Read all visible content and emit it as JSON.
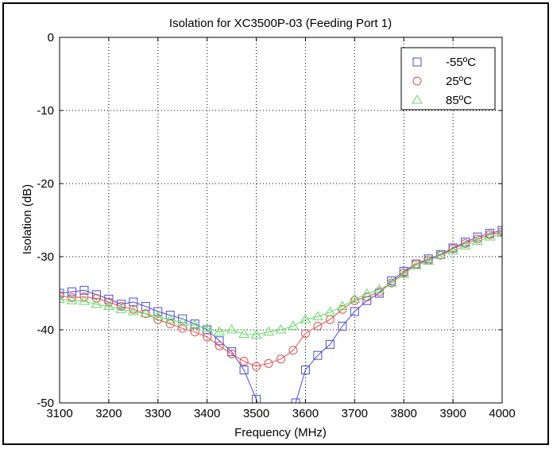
{
  "chart_data": {
    "type": "line",
    "title": "Isolation for XC3500P-03 (Feeding Port 1)",
    "xlabel": "Frequency (MHz)",
    "ylabel": "Isolation (dB)",
    "xlim": [
      3100,
      4000
    ],
    "ylim": [
      -50,
      0
    ],
    "xticks": [
      3100,
      3200,
      3300,
      3400,
      3500,
      3600,
      3700,
      3800,
      3900,
      4000
    ],
    "yticks": [
      0,
      -10,
      -20,
      -30,
      -40,
      -50
    ],
    "grid": true,
    "legend_position": "top-right",
    "series": [
      {
        "name": "-55ºC",
        "color": "#4b4bd6",
        "marker": "square",
        "x": [
          3100,
          3125,
          3150,
          3175,
          3200,
          3225,
          3250,
          3275,
          3300,
          3325,
          3350,
          3375,
          3400,
          3425,
          3450,
          3475,
          3500,
          3510,
          3520,
          3580,
          3600,
          3625,
          3650,
          3675,
          3700,
          3725,
          3750,
          3775,
          3800,
          3825,
          3850,
          3875,
          3900,
          3925,
          3950,
          3975,
          4000
        ],
        "y": [
          -35.0,
          -34.8,
          -34.6,
          -35.2,
          -35.8,
          -36.5,
          -36.2,
          -36.8,
          -37.5,
          -38.0,
          -38.5,
          -39.2,
          -40.0,
          -41.5,
          -43.0,
          -45.5,
          -49.5,
          -52.0,
          -54.0,
          -50.0,
          -45.5,
          -43.5,
          -42.0,
          -39.5,
          -37.5,
          -36.0,
          -35.0,
          -33.3,
          -32.0,
          -31.0,
          -30.3,
          -29.7,
          -28.8,
          -28.0,
          -27.3,
          -26.8,
          -26.4
        ]
      },
      {
        "name": "25ºC",
        "color": "#e05050",
        "marker": "circle",
        "x": [
          3100,
          3125,
          3150,
          3175,
          3200,
          3225,
          3250,
          3275,
          3300,
          3325,
          3350,
          3375,
          3400,
          3425,
          3450,
          3475,
          3500,
          3525,
          3550,
          3575,
          3600,
          3625,
          3650,
          3675,
          3700,
          3725,
          3750,
          3775,
          3800,
          3825,
          3850,
          3875,
          3900,
          3925,
          3950,
          3975,
          4000
        ],
        "y": [
          -35.3,
          -35.6,
          -35.5,
          -35.7,
          -36.2,
          -36.8,
          -37.2,
          -37.8,
          -38.6,
          -39.2,
          -39.8,
          -40.3,
          -41.0,
          -42.2,
          -43.3,
          -44.3,
          -45.0,
          -44.6,
          -44.0,
          -42.8,
          -40.5,
          -39.5,
          -38.6,
          -37.2,
          -36.0,
          -35.5,
          -34.8,
          -33.6,
          -32.2,
          -31.0,
          -30.5,
          -29.8,
          -28.9,
          -28.2,
          -27.6,
          -27.0,
          -26.6
        ]
      },
      {
        "name": "85ºC",
        "color": "#66d966",
        "marker": "triangle",
        "x": [
          3100,
          3125,
          3150,
          3175,
          3200,
          3225,
          3250,
          3275,
          3300,
          3325,
          3350,
          3375,
          3400,
          3425,
          3450,
          3475,
          3500,
          3525,
          3550,
          3575,
          3600,
          3625,
          3650,
          3675,
          3700,
          3725,
          3750,
          3775,
          3800,
          3825,
          3850,
          3875,
          3900,
          3925,
          3950,
          3975,
          4000
        ],
        "y": [
          -35.8,
          -36.0,
          -36.1,
          -36.5,
          -36.8,
          -37.2,
          -37.5,
          -37.8,
          -38.2,
          -38.6,
          -39.0,
          -39.4,
          -39.8,
          -40.3,
          -40.0,
          -40.6,
          -40.7,
          -40.3,
          -40.0,
          -39.5,
          -38.6,
          -38.2,
          -37.6,
          -36.8,
          -35.8,
          -35.1,
          -34.5,
          -33.6,
          -32.4,
          -31.2,
          -30.6,
          -29.8,
          -29.2,
          -28.5,
          -27.9,
          -27.3,
          -26.8
        ]
      }
    ]
  }
}
